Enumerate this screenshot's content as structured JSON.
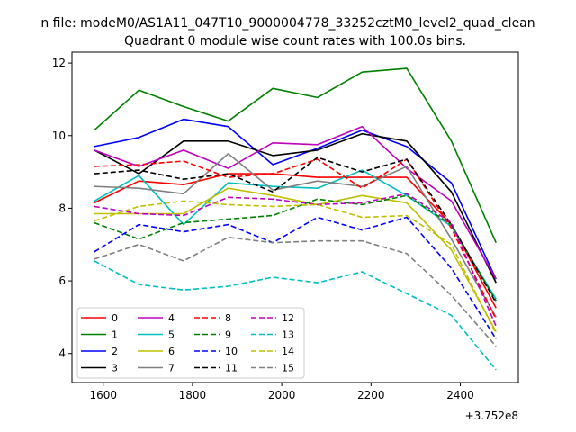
{
  "chart_data": {
    "type": "line",
    "suptitle": "n file: modeM0/AS1A11_047T10_9000004778_33252cztM0_level2_quad_clean",
    "title": "Quadrant 0 module wise count rates with 100.0s bins.",
    "xlabel": "",
    "ylabel": "",
    "x_offset_label": "+3.752e8",
    "x": [
      1580,
      1680,
      1780,
      1880,
      1980,
      2080,
      2180,
      2280,
      2380,
      2480
    ],
    "xlim": [
      1530,
      2530
    ],
    "ylim": [
      3.2,
      12.3
    ],
    "xticks": [
      1600,
      1800,
      2000,
      2200,
      2400
    ],
    "yticks": [
      4,
      6,
      8,
      10,
      12
    ],
    "legend_position": "lower-left",
    "grid": false,
    "series": [
      {
        "name": "0",
        "color": "#ff0000",
        "dash": "solid",
        "values": [
          8.15,
          8.75,
          8.65,
          8.95,
          8.95,
          8.85,
          8.85,
          8.85,
          7.55,
          5.25
        ]
      },
      {
        "name": "1",
        "color": "#008000",
        "dash": "solid",
        "values": [
          10.15,
          11.25,
          10.8,
          10.4,
          11.3,
          11.05,
          11.75,
          11.85,
          9.85,
          7.05
        ]
      },
      {
        "name": "2",
        "color": "#0000ff",
        "dash": "solid",
        "values": [
          9.7,
          9.95,
          10.45,
          10.25,
          9.2,
          9.65,
          10.15,
          9.7,
          8.7,
          6.05
        ]
      },
      {
        "name": "3",
        "color": "#000000",
        "dash": "solid",
        "values": [
          9.6,
          8.95,
          9.85,
          9.85,
          9.45,
          9.6,
          10.05,
          9.85,
          8.45,
          5.95
        ]
      },
      {
        "name": "4",
        "color": "#bf00bf",
        "dash": "solid",
        "values": [
          9.6,
          9.15,
          9.6,
          9.1,
          9.8,
          9.75,
          10.25,
          9.1,
          8.2,
          6.05
        ]
      },
      {
        "name": "5",
        "color": "#00bfbf",
        "dash": "solid",
        "values": [
          8.2,
          8.9,
          7.55,
          8.7,
          8.6,
          8.55,
          9.05,
          8.35,
          7.5,
          5.5
        ]
      },
      {
        "name": "6",
        "color": "#bfbf00",
        "dash": "solid",
        "values": [
          7.85,
          7.85,
          7.85,
          8.55,
          8.35,
          8.1,
          8.35,
          8.15,
          6.85,
          4.6
        ]
      },
      {
        "name": "7",
        "color": "#808080",
        "dash": "solid",
        "values": [
          8.6,
          8.55,
          8.4,
          9.5,
          8.5,
          8.75,
          8.6,
          9.15,
          7.15,
          5.0
        ]
      },
      {
        "name": "8",
        "color": "#ff0000",
        "dash": "dashed",
        "values": [
          9.15,
          9.2,
          9.3,
          8.85,
          8.95,
          9.35,
          8.55,
          9.35,
          7.45,
          4.95
        ]
      },
      {
        "name": "9",
        "color": "#008000",
        "dash": "dashed",
        "values": [
          7.6,
          7.15,
          7.6,
          7.7,
          7.8,
          8.25,
          8.1,
          8.35,
          7.55,
          5.45
        ]
      },
      {
        "name": "10",
        "color": "#0000ff",
        "dash": "dashed",
        "values": [
          6.8,
          7.55,
          7.35,
          7.55,
          7.05,
          7.75,
          7.4,
          7.75,
          6.35,
          4.4
        ]
      },
      {
        "name": "11",
        "color": "#000000",
        "dash": "dashed",
        "values": [
          8.95,
          9.05,
          8.8,
          8.95,
          8.45,
          9.4,
          9.0,
          9.35,
          7.55,
          5.4
        ]
      },
      {
        "name": "12",
        "color": "#bf00bf",
        "dash": "dashed",
        "values": [
          8.05,
          7.85,
          7.8,
          8.3,
          8.25,
          8.1,
          8.15,
          8.4,
          7.6,
          4.75
        ]
      },
      {
        "name": "13",
        "color": "#00bfbf",
        "dash": "dashed",
        "values": [
          6.55,
          5.9,
          5.75,
          5.85,
          6.1,
          5.95,
          6.25,
          5.65,
          5.05,
          3.55
        ]
      },
      {
        "name": "14",
        "color": "#bfbf00",
        "dash": "dashed",
        "values": [
          7.65,
          8.05,
          8.2,
          8.1,
          8.05,
          8.1,
          7.75,
          7.8,
          7.0,
          4.55
        ]
      },
      {
        "name": "15",
        "color": "#808080",
        "dash": "dashed",
        "values": [
          6.6,
          7.0,
          6.55,
          7.2,
          7.05,
          7.1,
          7.1,
          6.75,
          5.6,
          4.2
        ]
      }
    ]
  }
}
